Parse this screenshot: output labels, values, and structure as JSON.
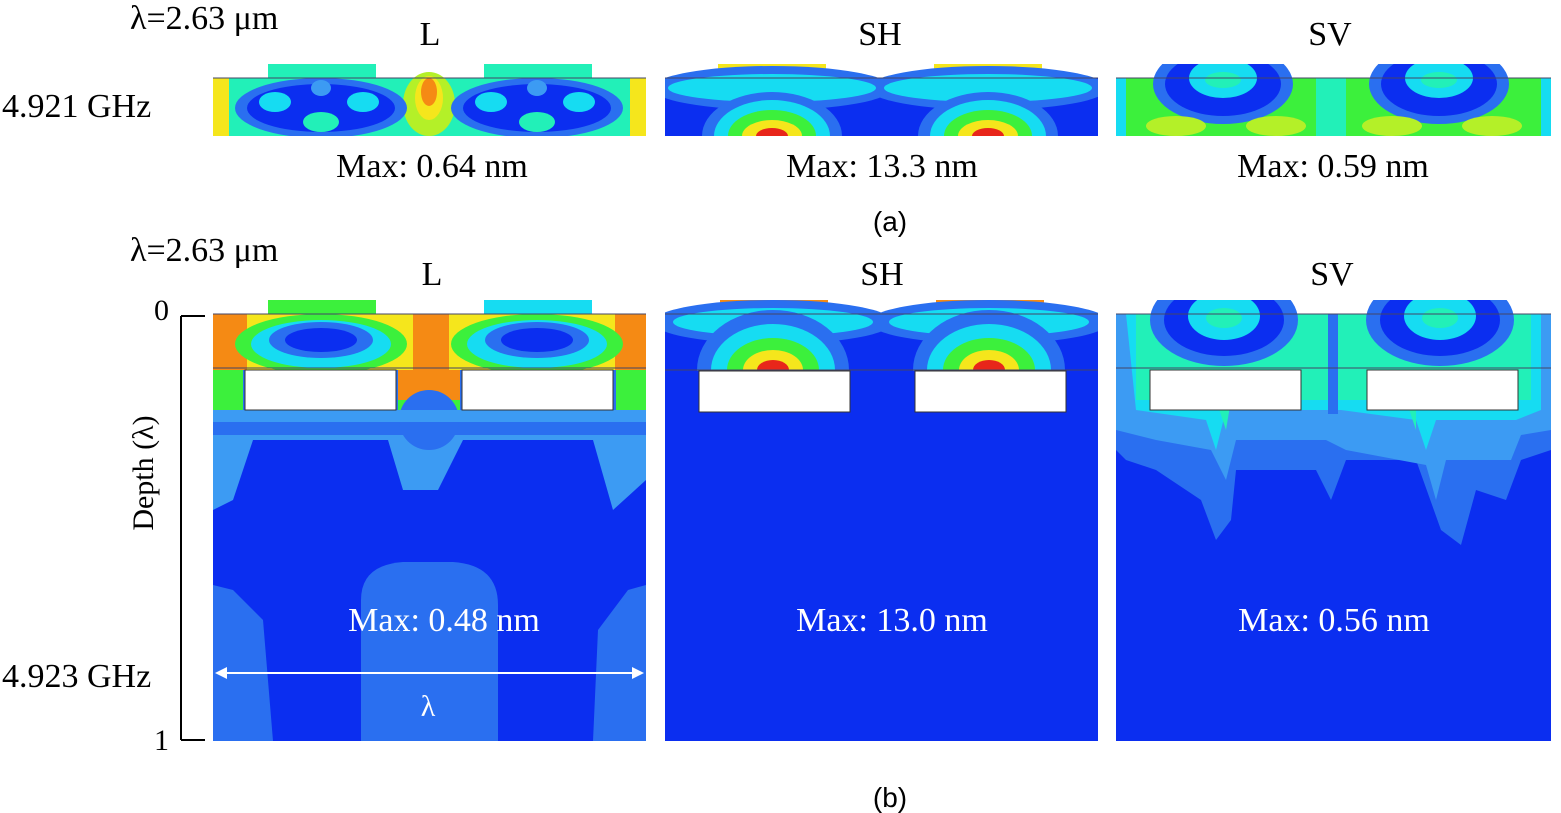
{
  "colors": {
    "dark_blue": "#0b2ef0",
    "blue": "#2a6ff0",
    "light_blue": "#3c9bf3",
    "cyan": "#16dcf2",
    "cyan_green": "#22f0b8",
    "green": "#3cf03c",
    "yellow_green": "#b4f028",
    "yellow": "#f5e61c",
    "orange": "#f58a14",
    "red": "#e8261a",
    "white": "#ffffff"
  },
  "figure_a": {
    "wavelength_label": "λ=2.63 μm",
    "frequency_label": "4.921 GHz",
    "caption": "(a)",
    "panels": [
      {
        "mode": "L",
        "max_label": "Max: 0.64 nm"
      },
      {
        "mode": "SH",
        "max_label": "Max: 13.3 nm"
      },
      {
        "mode": "SV",
        "max_label": "Max: 0.59 nm"
      }
    ]
  },
  "figure_b": {
    "wavelength_label": "λ=2.63 μm",
    "frequency_label": "4.923 GHz",
    "caption": "(b)",
    "depth_axis": {
      "label": "Depth (λ)",
      "tick_top": "0",
      "tick_bottom": "1"
    },
    "lambda_marker": "λ",
    "panels": [
      {
        "mode": "L",
        "max_label": "Max: 0.48 nm"
      },
      {
        "mode": "SH",
        "max_label": "Max: 13.0 nm"
      },
      {
        "mode": "SV",
        "max_label": "Max: 0.56 nm"
      }
    ]
  }
}
